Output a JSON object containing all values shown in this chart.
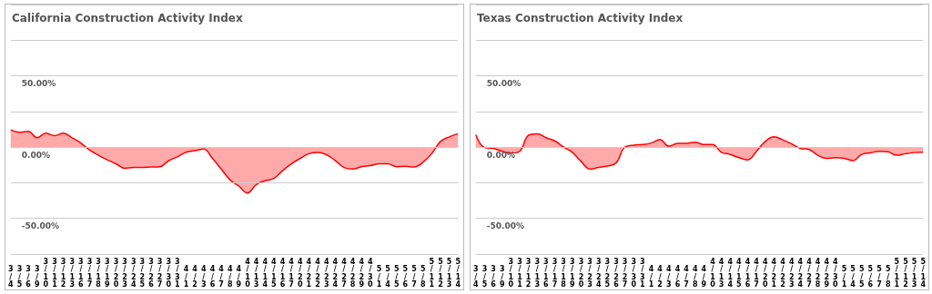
{
  "chart_data": [
    {
      "type": "area",
      "title": "California Construction Activity Index",
      "categories": [
        "3/4",
        "3/5",
        "3/6",
        "3/9",
        "3/10",
        "3/11",
        "3/12",
        "3/13",
        "3/16",
        "3/17",
        "3/18",
        "3/19",
        "3/20",
        "3/23",
        "3/24",
        "3/25",
        "3/26",
        "3/27",
        "3/30",
        "3/31",
        "4/1",
        "4/2",
        "4/3",
        "4/6",
        "4/7",
        "4/8",
        "4/9",
        "4/10",
        "4/13",
        "4/14",
        "4/15",
        "4/16",
        "4/17",
        "4/20",
        "4/21",
        "4/22",
        "4/23",
        "4/24",
        "4/27",
        "4/28",
        "4/29",
        "4/30",
        "5/1",
        "5/4",
        "5/5",
        "5/6",
        "5/7",
        "5/8",
        "5/11",
        "5/12",
        "5/13",
        "5/14"
      ],
      "values": [
        12,
        10.3,
        11,
        6.5,
        9.7,
        8,
        9.7,
        6.5,
        2.8,
        -2.2,
        -5.8,
        -9,
        -11.8,
        -14.9,
        -14.4,
        -14.4,
        -14,
        -13.8,
        -9.7,
        -6.9,
        -3.7,
        -2.6,
        -1.5,
        -8,
        -15.5,
        -23,
        -27.4,
        -32.3,
        -26.3,
        -23.7,
        -22,
        -16.6,
        -11.8,
        -8,
        -4.7,
        -3.9,
        -5.4,
        -9.5,
        -14.4,
        -15.5,
        -13.8,
        -13.1,
        -11.8,
        -11.8,
        -13.8,
        -13.6,
        -14,
        -10.8,
        -4.7,
        3.9,
        7.1,
        9.3
      ],
      "color": "#ff0000",
      "ylim": [
        -100,
        100
      ],
      "yticks": [
        {
          "value": -100,
          "label": null
        },
        {
          "value": -75,
          "label": null
        },
        {
          "value": -50,
          "label": "-50.00%"
        },
        {
          "value": -25,
          "label": null
        },
        {
          "value": 0,
          "label": "0.00%"
        },
        {
          "value": 25,
          "label": null
        },
        {
          "value": 50,
          "label": "50.00%"
        },
        {
          "value": 75,
          "label": null
        },
        {
          "value": 100,
          "label": null
        }
      ],
      "grid": "y"
    },
    {
      "type": "area",
      "title": "Texas Construction Activity Index",
      "categories": [
        "3/4",
        "3/5",
        "3/6",
        "3/9",
        "3/10",
        "3/11",
        "3/12",
        "3/13",
        "3/16",
        "3/17",
        "3/18",
        "3/19",
        "3/20",
        "3/23",
        "3/24",
        "3/25",
        "3/26",
        "3/27",
        "3/30",
        "3/31",
        "4/1",
        "4/2",
        "4/3",
        "4/6",
        "4/7",
        "4/8",
        "4/9",
        "4/10",
        "4/13",
        "4/14",
        "4/15",
        "4/16",
        "4/17",
        "4/20",
        "4/21",
        "4/22",
        "4/23",
        "4/24",
        "4/27",
        "4/28",
        "4/29",
        "4/30",
        "5/1",
        "5/4",
        "5/5",
        "5/6",
        "5/7",
        "5/8",
        "5/11",
        "5/12",
        "5/13",
        "5/14"
      ],
      "values": [
        8.6,
        -0.4,
        -1,
        -3,
        -4.3,
        -3,
        8.2,
        9.3,
        6.5,
        4.3,
        0,
        -3.7,
        -10.1,
        -15.5,
        -14.4,
        -13.4,
        -11.2,
        0,
        1.3,
        1.7,
        2.8,
        5.2,
        0.6,
        2.6,
        2.6,
        3.4,
        1.7,
        1.7,
        -3.7,
        -5.2,
        -7.5,
        -9,
        -3,
        3.9,
        7.1,
        5,
        2.2,
        -0.9,
        -1.7,
        -5.8,
        -8,
        -7.5,
        -8,
        -9.5,
        -5.2,
        -4.1,
        -3,
        -3.4,
        -5.8,
        -4.7,
        -3.9,
        -3.7
      ],
      "color": "#ff0000",
      "ylim": [
        -100,
        100
      ],
      "yticks": [
        {
          "value": -100,
          "label": null
        },
        {
          "value": -75,
          "label": null
        },
        {
          "value": -50,
          "label": "-50.00%"
        },
        {
          "value": -25,
          "label": null
        },
        {
          "value": 0,
          "label": "0.00%"
        },
        {
          "value": 25,
          "label": null
        },
        {
          "value": 50,
          "label": "50.00%"
        },
        {
          "value": 75,
          "label": null
        },
        {
          "value": 100,
          "label": null
        }
      ],
      "grid": "y"
    }
  ]
}
